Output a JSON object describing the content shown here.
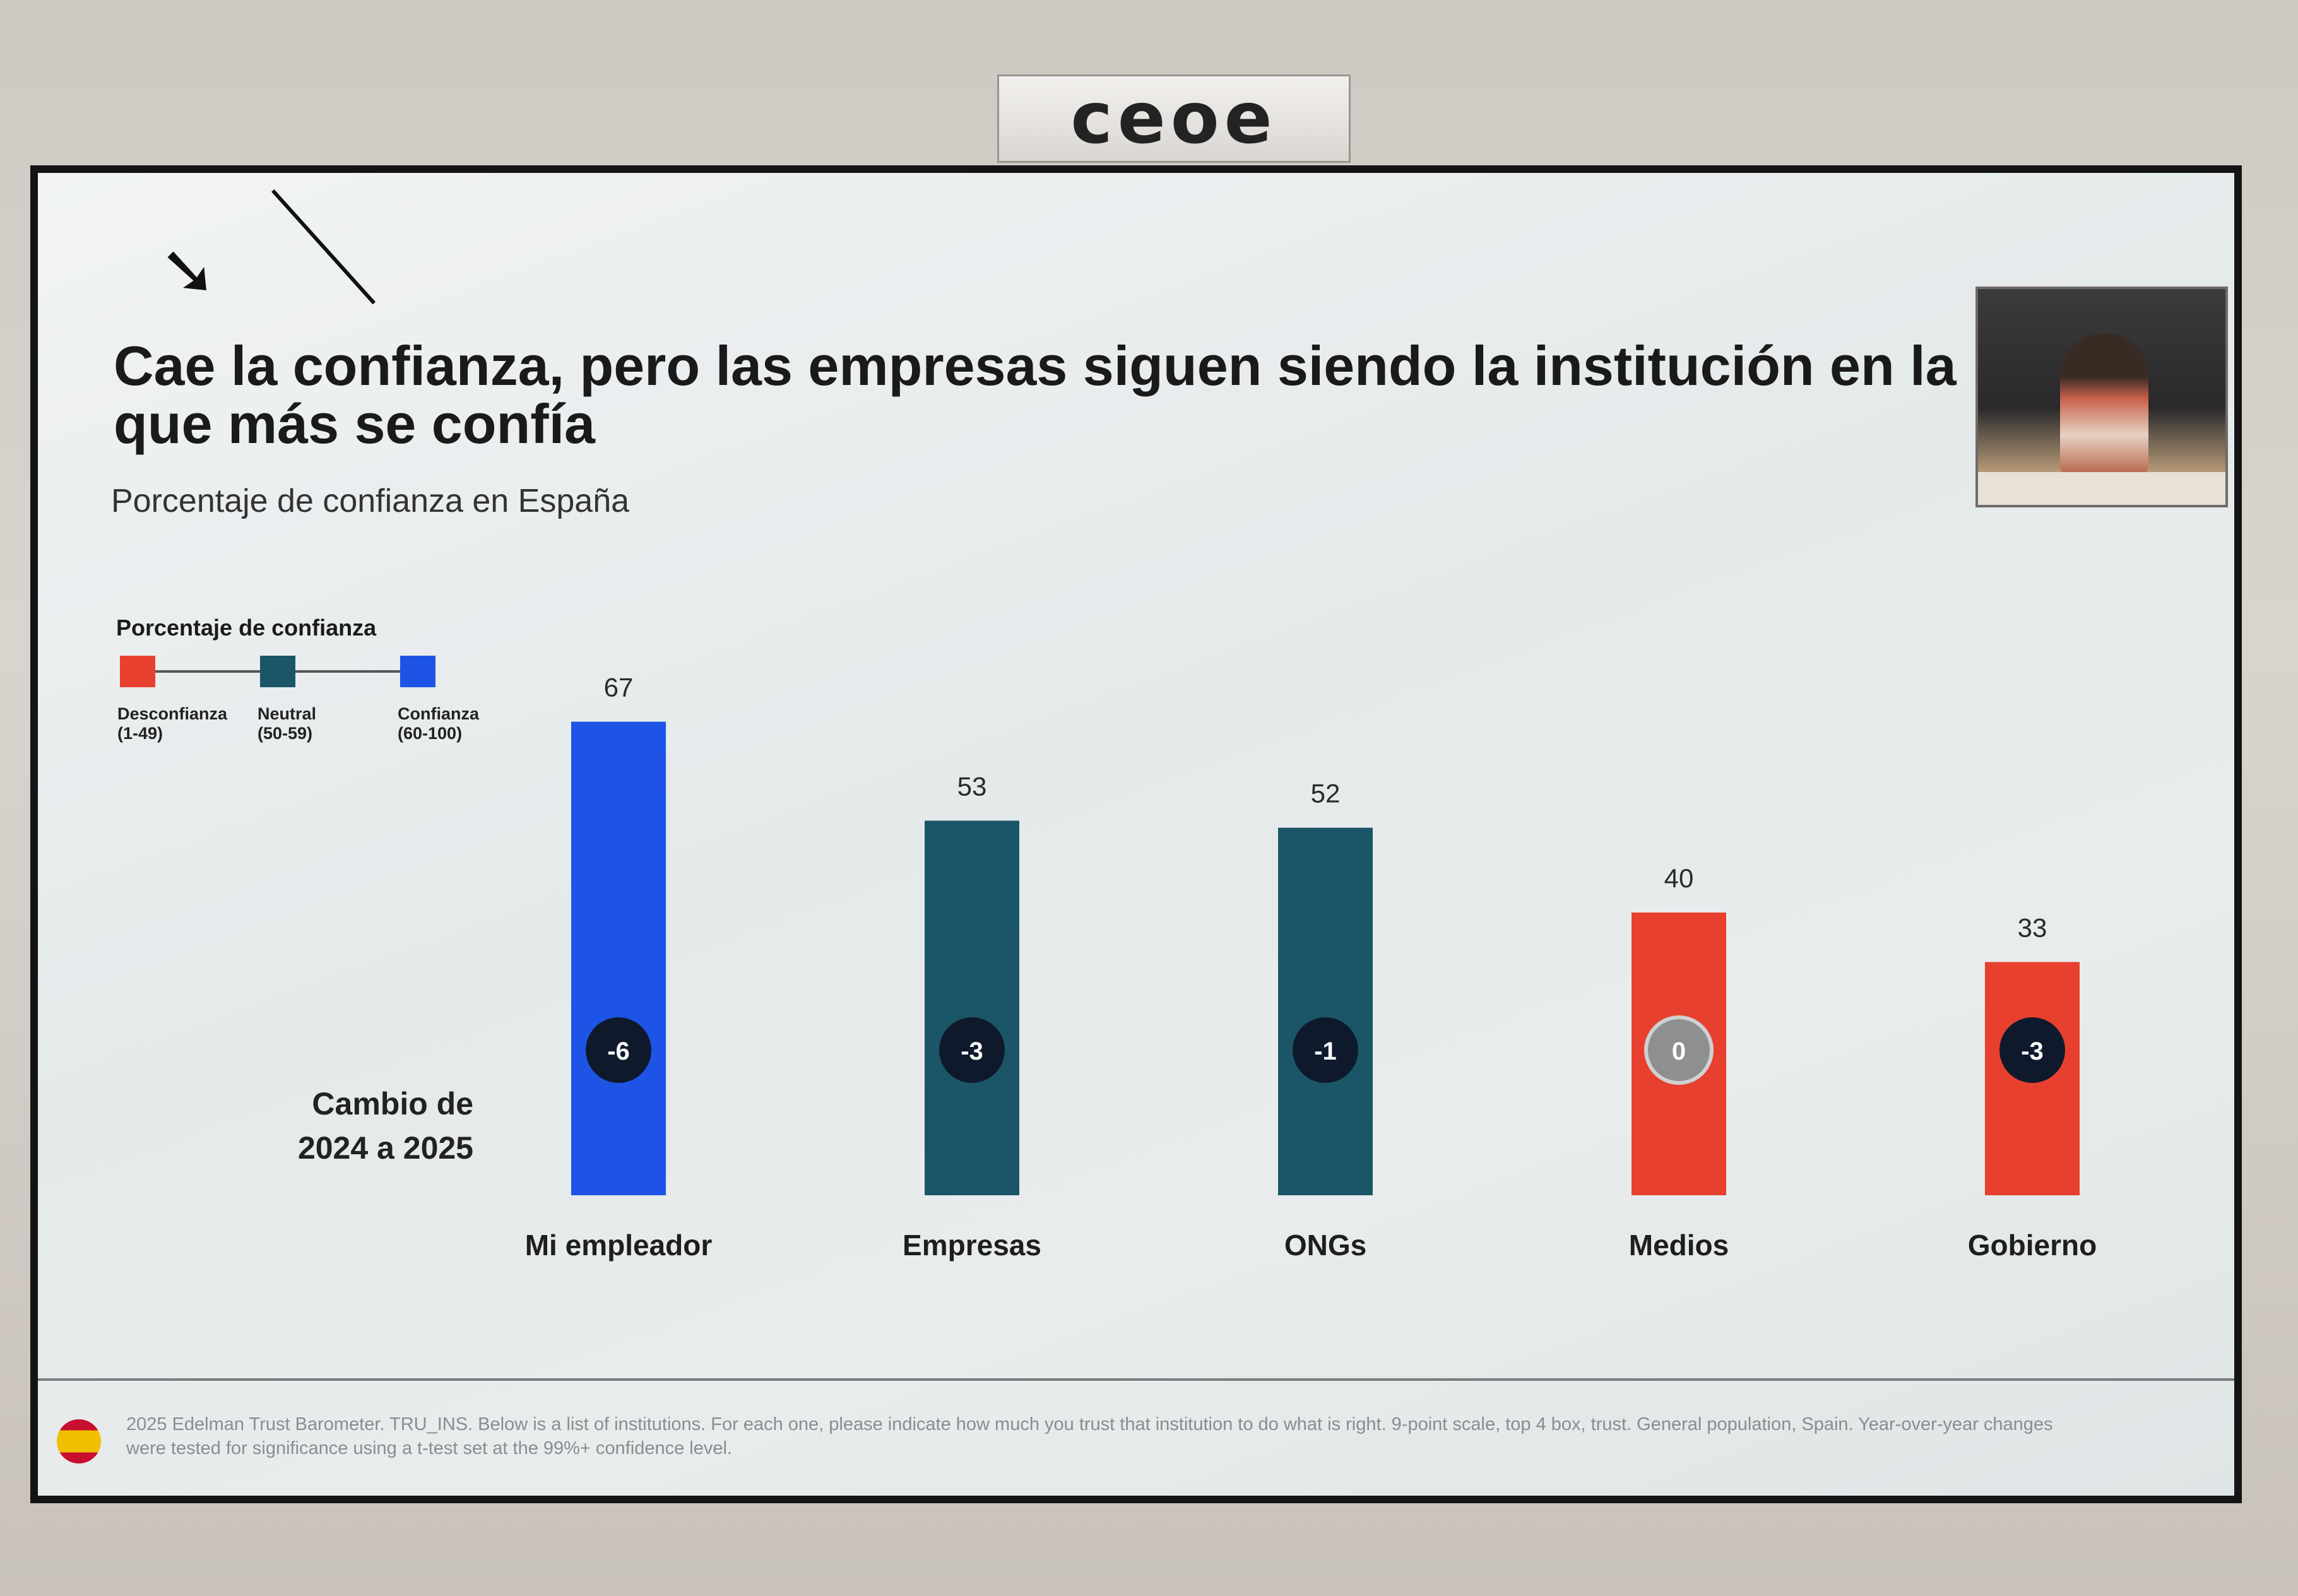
{
  "brand": {
    "logo_text": "ceoe"
  },
  "slide": {
    "title": "Cae la confianza, pero las empresas siguen siendo la institución en la que más se confía",
    "subtitle": "Porcentaje de confianza en España",
    "change_label": "Cambio de 2024 a 2025",
    "footnote": "2025 Edelman Trust Barometer. TRU_INS. Below is a list of institutions. For each one, please indicate how much you trust that institution to do what is right. 9-point scale, top 4 box, trust. General population, Spain. Year-over-year changes were tested for significance using a t-test set at the 99%+ confidence level.",
    "webcam_caption": "ceoe"
  },
  "legend": {
    "title": "Porcentaje de confianza",
    "items": [
      {
        "label": "Desconfianza",
        "range": "(1-49)",
        "color": "#e8402f"
      },
      {
        "label": "Neutral",
        "range": "(50-59)",
        "color": "#1b5668"
      },
      {
        "label": "Confianza",
        "range": "(60-100)",
        "color": "#1e54e6"
      }
    ]
  },
  "chart_data": {
    "type": "bar",
    "title": "Cae la confianza, pero las empresas siguen siendo la institución en la que más se confía",
    "subtitle": "Porcentaje de confianza en España",
    "categories": [
      "Mi empleador",
      "Empresas",
      "ONGs",
      "Medios",
      "Gobierno"
    ],
    "values": [
      67,
      53,
      52,
      40,
      33
    ],
    "changes": [
      "-6",
      "-3",
      "-1",
      "0",
      "-3"
    ],
    "change_label": "Cambio de 2024 a 2025",
    "colors": [
      "#1e54e6",
      "#1b5668",
      "#1b5668",
      "#e8402f",
      "#e8402f"
    ],
    "change_badge_colors": [
      "#0e1a2b",
      "#0e1a2b",
      "#0e1a2b",
      "#8e8f91",
      "#0e1a2b"
    ],
    "ylim": [
      0,
      100
    ],
    "grid": false,
    "legend_position": "top-left"
  }
}
